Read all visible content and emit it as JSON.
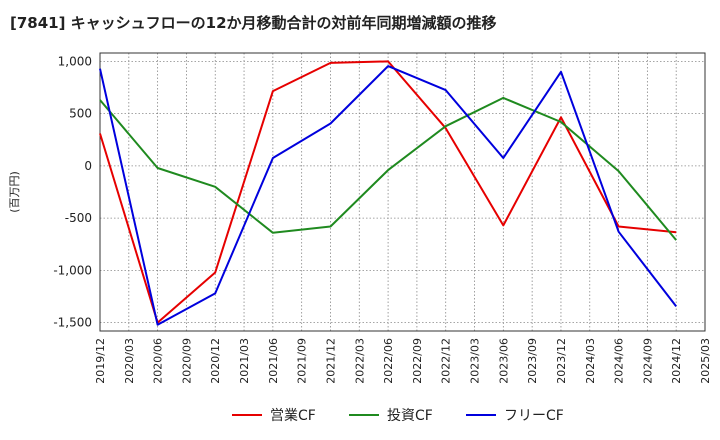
{
  "chart_data": {
    "type": "line",
    "title": "[7841]  キャッシュフローの12か月移動合計の対前年同期増減額の推移",
    "ylabel": "(百万円)",
    "xlabel": "",
    "ylim": [
      -1580,
      1080
    ],
    "yticks": [
      1000,
      500,
      0,
      -500,
      -1000,
      -1500
    ],
    "ytick_labels": [
      "1,000",
      "500",
      "0",
      "-500",
      "-1,000",
      "-1,500"
    ],
    "xlim": [
      "2019/12",
      "2025/03"
    ],
    "x": [
      "2019/12",
      "2020/03",
      "2020/06",
      "2020/09",
      "2020/12",
      "2021/03",
      "2021/06",
      "2021/09",
      "2021/12",
      "2022/03",
      "2022/06",
      "2022/09",
      "2022/12",
      "2023/03",
      "2023/06",
      "2023/09",
      "2023/12",
      "2024/03",
      "2024/06",
      "2024/09",
      "2024/12",
      "2025/03"
    ],
    "grid": true,
    "legend_position": "bottom",
    "series": [
      {
        "name": "営業CF",
        "color": "#e60000",
        "x": [
          "2019/12",
          "2020/06",
          "2020/12",
          "2021/06",
          "2021/12",
          "2022/06",
          "2022/12",
          "2023/06",
          "2023/12",
          "2024/06",
          "2024/12"
        ],
        "values": [
          310,
          -1500,
          -1020,
          715,
          985,
          1000,
          360,
          -570,
          465,
          -580,
          -635
        ]
      },
      {
        "name": "投資CF",
        "color": "#1f8a1f",
        "x": [
          "2019/12",
          "2020/06",
          "2020/12",
          "2021/06",
          "2021/12",
          "2022/06",
          "2022/12",
          "2023/06",
          "2023/12",
          "2024/06",
          "2024/12"
        ],
        "values": [
          630,
          -20,
          -200,
          -640,
          -580,
          -40,
          380,
          650,
          420,
          -50,
          -710
        ]
      },
      {
        "name": "フリーCF",
        "color": "#0000dd",
        "x": [
          "2019/12",
          "2020/06",
          "2020/12",
          "2021/06",
          "2021/12",
          "2022/06",
          "2022/12",
          "2023/06",
          "2023/12",
          "2024/06",
          "2024/12"
        ],
        "values": [
          930,
          -1520,
          -1220,
          75,
          405,
          955,
          725,
          75,
          900,
          -630,
          -1345
        ]
      }
    ]
  }
}
